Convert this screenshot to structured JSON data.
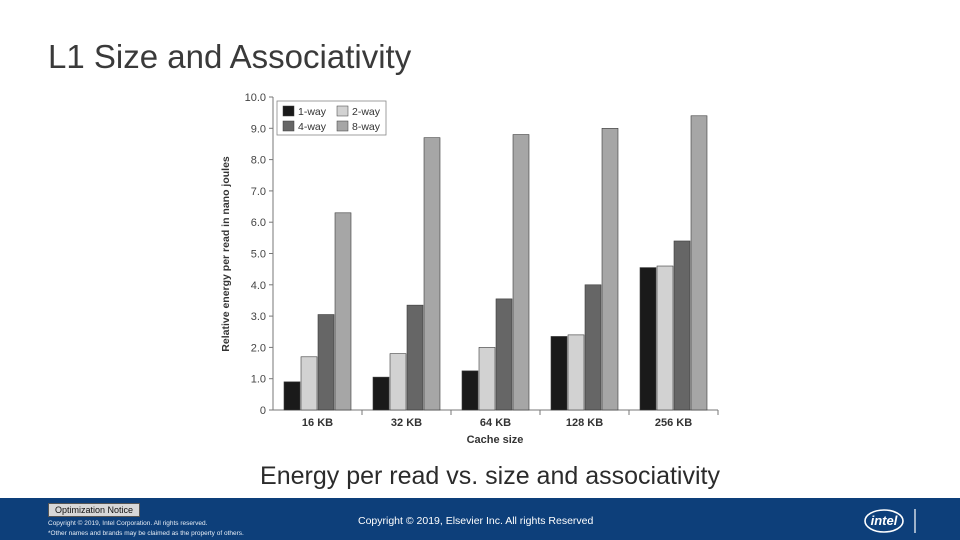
{
  "slide": {
    "title": "L1 Size and Associativity",
    "caption": "Energy per read vs. size and associativity"
  },
  "footer": {
    "optimization_notice": "Optimization Notice",
    "intel_copyright_line1": "Copyright © 2019, Intel Corporation. All rights reserved.",
    "intel_copyright_line2": "*Other names and brands may be claimed as the property of others.",
    "elsevier_copyright": "Copyright © 2019, Elsevier Inc. All rights Reserved",
    "logo_text": "intel"
  },
  "colors": {
    "footer_bg": "#0d3f7a",
    "series": [
      "#1a1a1a",
      "#d2d2d2",
      "#666666",
      "#a6a6a6"
    ]
  },
  "chart_data": {
    "type": "bar",
    "xlabel": "Cache size",
    "ylabel": "Relative energy per read in nano joules",
    "ylim": [
      0,
      10
    ],
    "yticks": [
      "0",
      "1.0",
      "2.0",
      "3.0",
      "4.0",
      "5.0",
      "6.0",
      "7.0",
      "8.0",
      "9.0",
      "10.0"
    ],
    "categories": [
      "16 KB",
      "32 KB",
      "64 KB",
      "128 KB",
      "256 KB"
    ],
    "legend_position": "top-left",
    "series": [
      {
        "name": "1-way",
        "values": [
          0.9,
          1.05,
          1.25,
          2.35,
          4.55
        ]
      },
      {
        "name": "2-way",
        "values": [
          1.7,
          1.8,
          2.0,
          2.4,
          4.6
        ]
      },
      {
        "name": "4-way",
        "values": [
          3.05,
          3.35,
          3.55,
          4.0,
          5.4
        ]
      },
      {
        "name": "8-way",
        "values": [
          6.3,
          8.7,
          8.8,
          9.0,
          9.4
        ]
      }
    ]
  }
}
